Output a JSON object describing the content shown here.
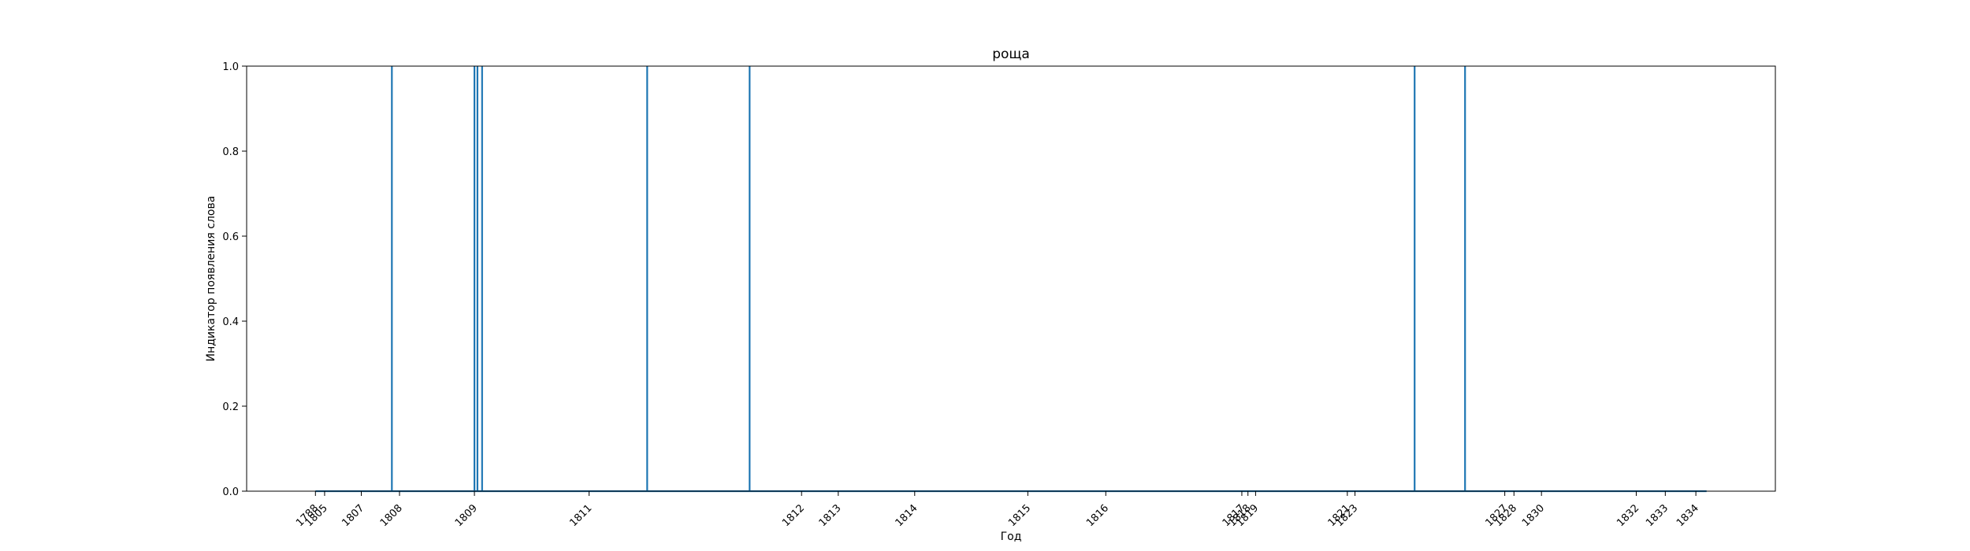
{
  "chart_data": {
    "type": "line",
    "title": "роща",
    "xlabel": "Год",
    "ylabel": "Индикатор появления слова",
    "ylim": [
      0,
      1
    ],
    "y_ticks": [
      "0.0",
      "0.2",
      "0.4",
      "0.6",
      "0.8",
      "1.0"
    ],
    "grid": false,
    "line_color": "#1f77b4",
    "x_ticks": [
      {
        "label": "1788",
        "x": 0.045
      },
      {
        "label": "1805",
        "x": 0.051
      },
      {
        "label": "1807",
        "x": 0.075
      },
      {
        "label": "1808",
        "x": 0.1
      },
      {
        "label": "1809",
        "x": 0.149
      },
      {
        "label": "1811",
        "x": 0.224
      },
      {
        "label": "1812",
        "x": 0.363
      },
      {
        "label": "1813",
        "x": 0.387
      },
      {
        "label": "1814",
        "x": 0.437
      },
      {
        "label": "1815",
        "x": 0.511
      },
      {
        "label": "1816",
        "x": 0.562
      },
      {
        "label": "1817",
        "x": 0.651
      },
      {
        "label": "1818",
        "x": 0.655
      },
      {
        "label": "1819",
        "x": 0.66
      },
      {
        "label": "1821",
        "x": 0.72
      },
      {
        "label": "1823",
        "x": 0.725
      },
      {
        "label": "1827",
        "x": 0.823
      },
      {
        "label": "1828",
        "x": 0.829
      },
      {
        "label": "1830",
        "x": 0.847
      },
      {
        "label": "1832",
        "x": 0.909
      },
      {
        "label": "1833",
        "x": 0.928
      },
      {
        "label": "1834",
        "x": 0.948
      }
    ],
    "series": [
      {
        "points": [
          {
            "x": 0.045,
            "y": 0
          },
          {
            "x": 0.095,
            "y": 0
          },
          {
            "x": 0.095,
            "y": 1
          },
          {
            "x": 0.095,
            "y": 0
          },
          {
            "x": 0.149,
            "y": 0
          },
          {
            "x": 0.149,
            "y": 1
          },
          {
            "x": 0.149,
            "y": 0
          },
          {
            "x": 0.151,
            "y": 0
          },
          {
            "x": 0.151,
            "y": 1
          },
          {
            "x": 0.151,
            "y": 0
          },
          {
            "x": 0.154,
            "y": 0
          },
          {
            "x": 0.154,
            "y": 1
          },
          {
            "x": 0.154,
            "y": 0
          },
          {
            "x": 0.262,
            "y": 0
          },
          {
            "x": 0.262,
            "y": 1
          },
          {
            "x": 0.262,
            "y": 0
          },
          {
            "x": 0.329,
            "y": 0
          },
          {
            "x": 0.329,
            "y": 1
          },
          {
            "x": 0.329,
            "y": 0
          },
          {
            "x": 0.764,
            "y": 0
          },
          {
            "x": 0.764,
            "y": 1
          },
          {
            "x": 0.764,
            "y": 0
          },
          {
            "x": 0.797,
            "y": 0
          },
          {
            "x": 0.797,
            "y": 1
          },
          {
            "x": 0.797,
            "y": 0
          },
          {
            "x": 0.955,
            "y": 0
          }
        ]
      }
    ]
  }
}
